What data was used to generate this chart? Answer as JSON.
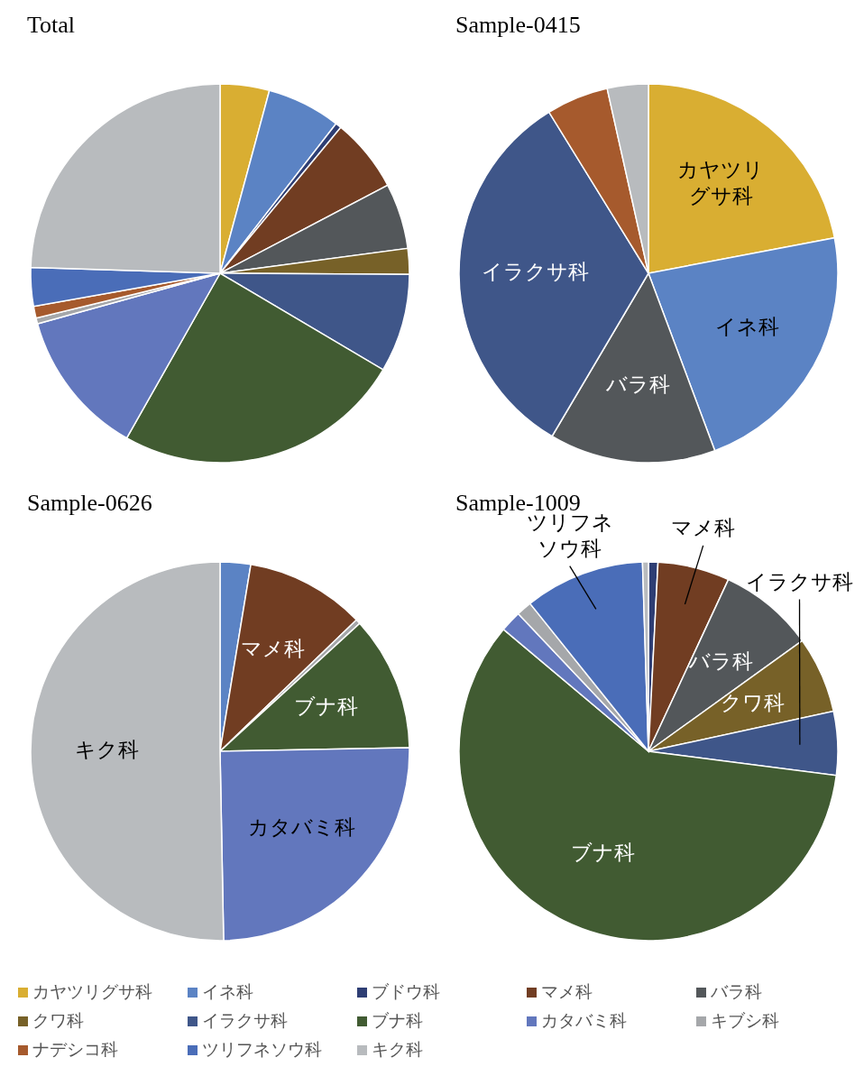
{
  "chart_data": [
    {
      "type": "pie",
      "title": "Total",
      "categories": [
        "カヤツリグサ科",
        "イネ科",
        "ブドウ科",
        "マメ科",
        "バラ科",
        "クワ科",
        "イラクサ科",
        "ブナ科",
        "カタバミ科",
        "キブシ科",
        "ナデシコ科",
        "ツリフネソウ科",
        "キク科"
      ],
      "values": [
        4.2,
        6.3,
        0.5,
        6.3,
        5.6,
        2.2,
        8.4,
        24.7,
        12.5,
        0.5,
        1.0,
        3.3,
        24.5
      ],
      "colors": [
        "#d9ae32",
        "#5b83c4",
        "#2e3e74",
        "#713d22",
        "#53575a",
        "#776128",
        "#3f5689",
        "#415b32",
        "#6277bd",
        "#a5a7aa",
        "#a65a2d",
        "#4a6db8",
        "#b8bbbe"
      ],
      "legend": "bottom"
    },
    {
      "type": "pie",
      "title": "Sample-0415",
      "categories": [
        "カヤツリグサ科",
        "イネ科",
        "バラ科",
        "イラクサ科",
        null,
        null
      ],
      "values": [
        22.0,
        22.3,
        14.2,
        32.7,
        5.3,
        3.5
      ],
      "colors": [
        "#d9ae32",
        "#5b83c4",
        "#53575a",
        "#3f5689",
        "#a65a2d",
        "#b8bbbe"
      ]
    },
    {
      "type": "pie",
      "title": "Sample-0626",
      "categories": [
        null,
        "マメ科",
        null,
        "ブナ科",
        "カタバミ科",
        "キク科"
      ],
      "values": [
        2.6,
        10.2,
        0.4,
        11.5,
        25.0,
        50.3
      ],
      "colors": [
        "#5b83c4",
        "#713d22",
        "#a5a7aa",
        "#415b32",
        "#6277bd",
        "#b8bbbe"
      ]
    },
    {
      "type": "pie",
      "title": "Sample-1009",
      "categories": [
        null,
        "マメ科",
        "バラ科",
        "クワ科",
        "イラクサ科",
        "ブナ科",
        null,
        null,
        "ツリフネソウ科",
        null
      ],
      "values": [
        0.8,
        6.1,
        8.1,
        6.5,
        5.4,
        58.8,
        1.8,
        1.3,
        10.2,
        0.5
      ],
      "colors": [
        "#2e3e74",
        "#713d22",
        "#53575a",
        "#776128",
        "#3f5689",
        "#415b32",
        "#6277bd",
        "#a5a7aa",
        "#4a6db8",
        "#b8bbbe"
      ]
    }
  ]
}
